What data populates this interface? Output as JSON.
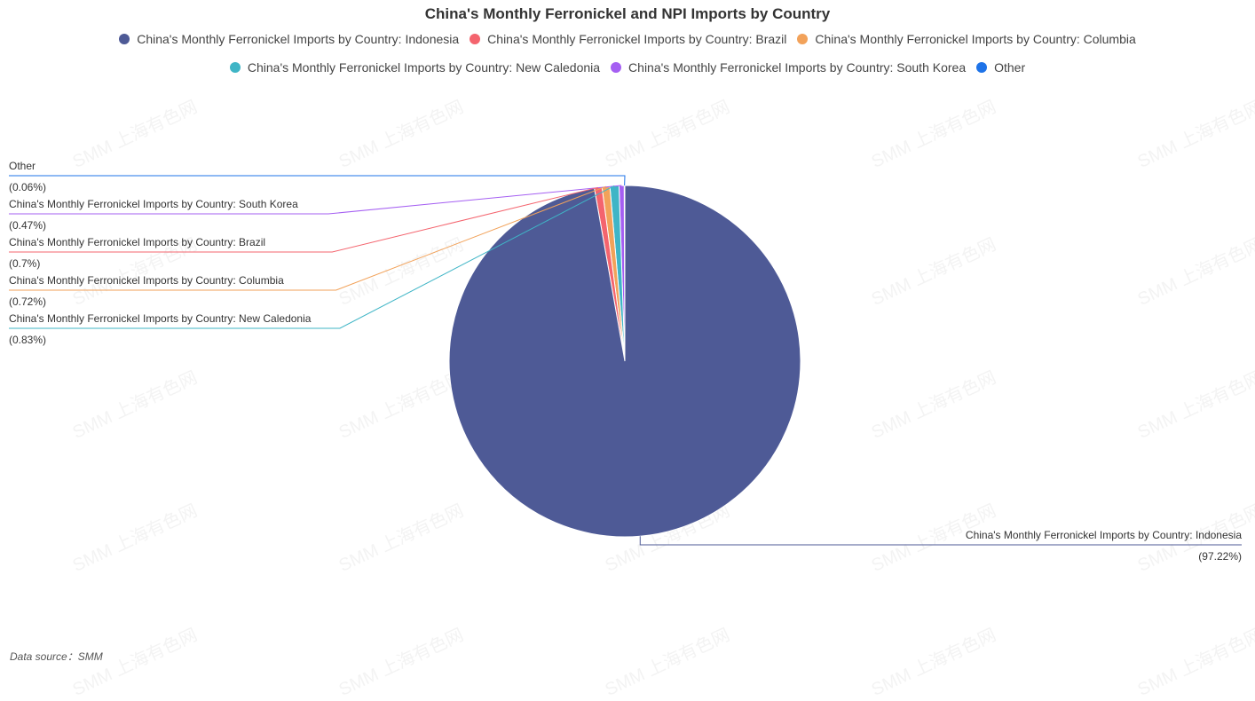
{
  "chart_data": {
    "type": "pie",
    "title": "China's Monthly Ferronickel and NPI Imports by Country",
    "series": [
      {
        "name": "China's Monthly Ferronickel Imports by Country: Indonesia",
        "value": 97.22,
        "label": "(97.22%)",
        "color": "#4e5a96"
      },
      {
        "name": "China's Monthly Ferronickel Imports by Country: Brazil",
        "value": 0.7,
        "label": "(0.7%)",
        "color": "#f4646e"
      },
      {
        "name": "China's Monthly Ferronickel Imports by Country: Columbia",
        "value": 0.72,
        "label": "(0.72%)",
        "color": "#f2a25a"
      },
      {
        "name": "China's Monthly Ferronickel Imports by Country: New Caledonia",
        "value": 0.83,
        "label": "(0.83%)",
        "color": "#3fb5c6"
      },
      {
        "name": "China's Monthly Ferronickel Imports by Country: South Korea",
        "value": 0.47,
        "label": "(0.47%)",
        "color": "#a55ff2"
      },
      {
        "name": "Other",
        "value": 0.06,
        "label": "(0.06%)",
        "color": "#1e73e8"
      }
    ],
    "legend_position": "top"
  },
  "watermark": "SMM 上海有色网",
  "source": "Data source：SMM"
}
